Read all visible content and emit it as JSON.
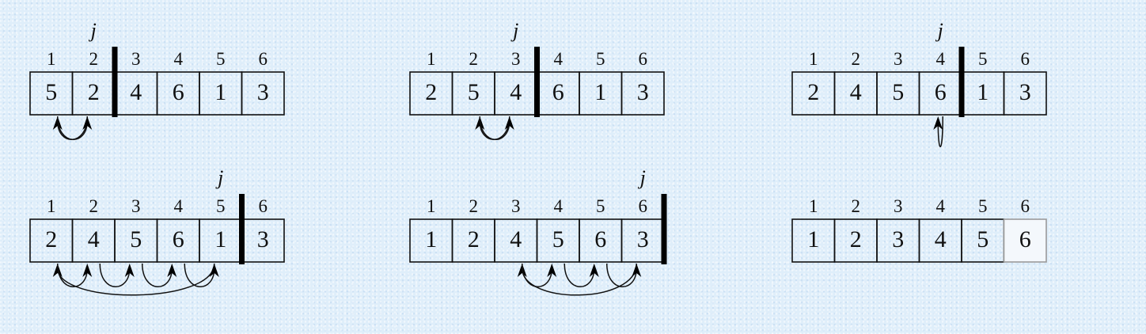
{
  "marker_label": "j",
  "panels": [
    {
      "indices": [
        "1",
        "2",
        "3",
        "4",
        "5",
        "6"
      ],
      "values": [
        "5",
        "2",
        "4",
        "6",
        "1",
        "3"
      ],
      "key_position": 2,
      "arcs": [
        [
          2,
          1
        ],
        [
          1,
          2
        ]
      ],
      "done": false
    },
    {
      "indices": [
        "1",
        "2",
        "3",
        "4",
        "5",
        "6"
      ],
      "values": [
        "2",
        "5",
        "4",
        "6",
        "1",
        "3"
      ],
      "key_position": 3,
      "arcs": [
        [
          3,
          2
        ],
        [
          2,
          3
        ]
      ],
      "done": false
    },
    {
      "indices": [
        "1",
        "2",
        "3",
        "4",
        "5",
        "6"
      ],
      "values": [
        "2",
        "4",
        "5",
        "6",
        "1",
        "3"
      ],
      "key_position": 4,
      "arcs": [
        [
          4,
          4
        ]
      ],
      "done": false
    },
    {
      "indices": [
        "1",
        "2",
        "3",
        "4",
        "5",
        "6"
      ],
      "values": [
        "2",
        "4",
        "5",
        "6",
        "1",
        "3"
      ],
      "key_position": 5,
      "arcs": [
        [
          5,
          1
        ],
        [
          1,
          2
        ],
        [
          2,
          3
        ],
        [
          3,
          4
        ],
        [
          4,
          5
        ]
      ],
      "done": false
    },
    {
      "indices": [
        "1",
        "2",
        "3",
        "4",
        "5",
        "6"
      ],
      "values": [
        "1",
        "2",
        "4",
        "5",
        "6",
        "3"
      ],
      "key_position": 6,
      "arcs": [
        [
          6,
          3
        ],
        [
          3,
          4
        ],
        [
          4,
          5
        ],
        [
          5,
          6
        ]
      ],
      "done": false
    },
    {
      "indices": [
        "1",
        "2",
        "3",
        "4",
        "5",
        "6"
      ],
      "values": [
        "1",
        "2",
        "3",
        "4",
        "5",
        "6"
      ],
      "key_position": null,
      "arcs": [],
      "done": true
    }
  ]
}
